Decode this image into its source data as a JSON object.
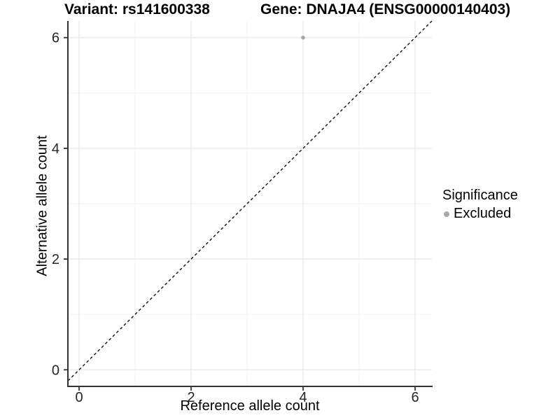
{
  "title": {
    "variant": "Variant: rs141600338",
    "gene": "Gene: DNAJA4 (ENSG00000140403)"
  },
  "chart_data": {
    "type": "scatter",
    "title": "Variant: rs141600338    Gene: DNAJA4 (ENSG00000140403)",
    "xlabel": "Reference allele count",
    "ylabel": "Alternative allele count",
    "xlim": [
      -0.2,
      6.3
    ],
    "ylim": [
      -0.3,
      6.3
    ],
    "xticks": [
      0,
      2,
      4,
      6
    ],
    "yticks": [
      0,
      2,
      4,
      6
    ],
    "xminor": [
      1,
      3,
      5
    ],
    "yminor": [
      1,
      3,
      5
    ],
    "grid": "on",
    "series": [
      {
        "name": "Excluded",
        "points": [
          {
            "x": 4,
            "y": 6
          }
        ]
      }
    ],
    "reference_line": {
      "kind": "identity",
      "style": "dashed",
      "from": [
        -0.2,
        -0.2
      ],
      "to": [
        6.3,
        6.3
      ]
    },
    "legend": {
      "title": "Significance",
      "position": "right",
      "items": [
        {
          "label": "Excluded",
          "color": "#a8a8a8"
        }
      ]
    },
    "colors": {
      "point": "#a8a8a8",
      "axis_line": "#333333",
      "tick_text": "#262626",
      "grid_major": "#e7e7e7",
      "grid_minor": "#f2f2f2",
      "reference_line": "#111111",
      "background": "#ffffff"
    }
  }
}
